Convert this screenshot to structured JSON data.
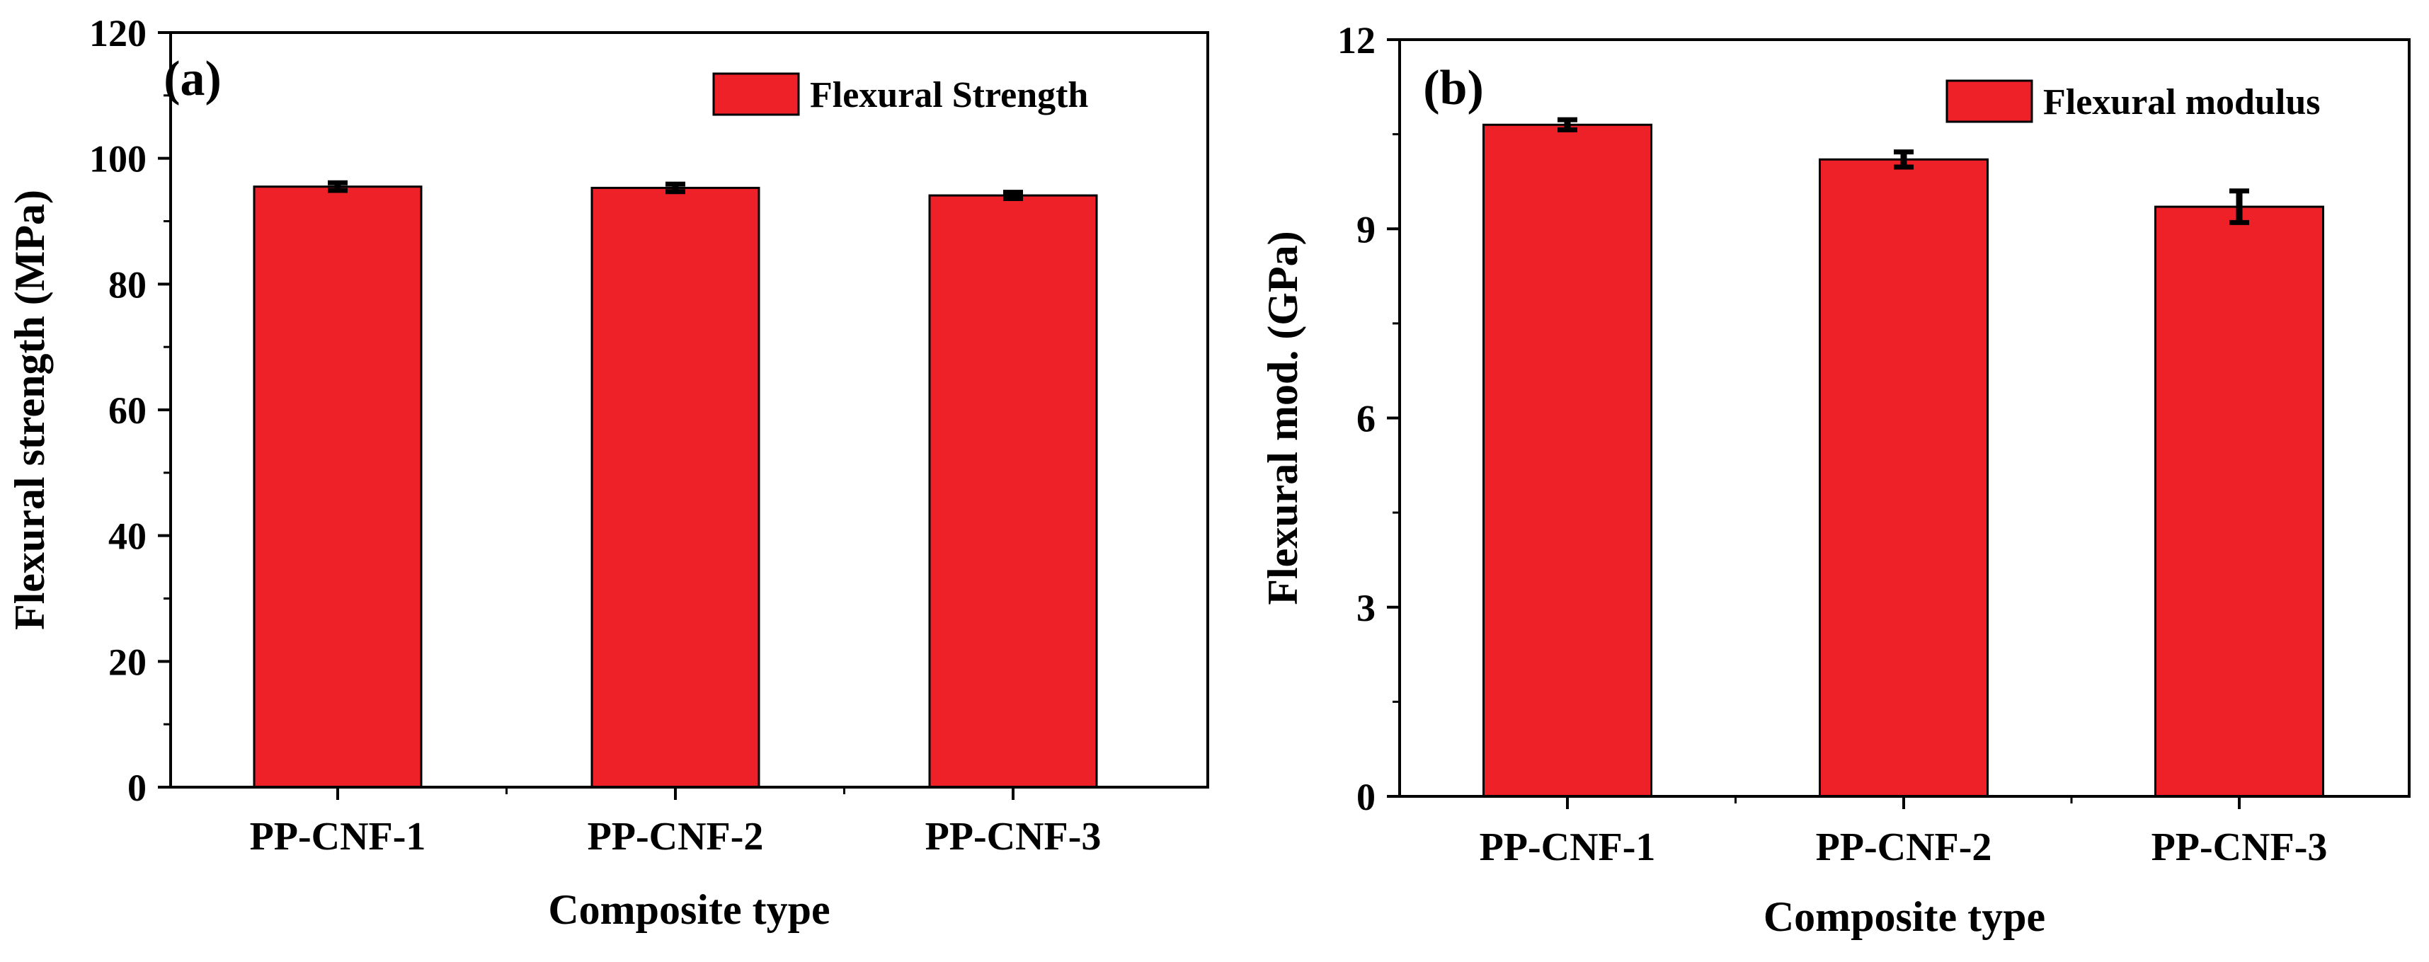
{
  "colors": {
    "bar": "#ee2129",
    "axis": "#000000",
    "background": "#ffffff"
  },
  "chart_data": [
    {
      "type": "bar",
      "panel_label": "(a)",
      "title": "",
      "xlabel": "Composite type",
      "ylabel": "Flexural strength (MPa)",
      "categories": [
        "PP-CNF-1",
        "PP-CNF-2",
        "PP-CNF-3"
      ],
      "series": [
        {
          "name": "Flexural Strength",
          "values": [
            95.5,
            95.3,
            94.1
          ],
          "errors": [
            0.6,
            0.6,
            0.5
          ]
        }
      ],
      "ylim": [
        0,
        120
      ],
      "yticks": [
        "0",
        "20",
        "40",
        "60",
        "80",
        "100",
        "120"
      ],
      "grid": false,
      "legend_position": "top-right"
    },
    {
      "type": "bar",
      "panel_label": "(b)",
      "title": "",
      "xlabel": "Composite type",
      "ylabel": "Flexural mod. (GPa)",
      "categories": [
        "PP-CNF-1",
        "PP-CNF-2",
        "PP-CNF-3"
      ],
      "series": [
        {
          "name": "Flexural modulus",
          "values": [
            10.65,
            10.1,
            9.35
          ],
          "errors": [
            0.08,
            0.12,
            0.25
          ]
        }
      ],
      "ylim": [
        0,
        12
      ],
      "yticks": [
        "0",
        "3",
        "6",
        "9",
        "12"
      ],
      "grid": false,
      "legend_position": "top-right"
    }
  ]
}
